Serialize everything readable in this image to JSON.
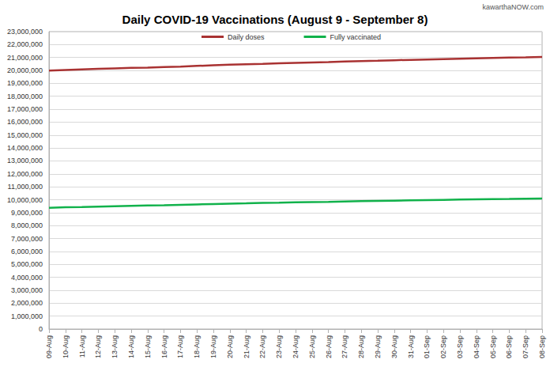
{
  "chart_data": {
    "type": "line",
    "title": "Daily COVID-19 Vaccinations (August 9 - September 8)",
    "annotations": [
      "kawarthaNOW.com"
    ],
    "categories": [
      "09-Aug",
      "10-Aug",
      "11-Aug",
      "12-Aug",
      "13-Aug",
      "14-Aug",
      "15-Aug",
      "16-Aug",
      "17-Aug",
      "18-Aug",
      "19-Aug",
      "20-Aug",
      "21-Aug",
      "22-Aug",
      "23-Aug",
      "24-Aug",
      "25-Aug",
      "26-Aug",
      "27-Aug",
      "28-Aug",
      "29-Aug",
      "30-Aug",
      "31-Aug",
      "01-Sep",
      "02-Sep",
      "03-Sep",
      "04-Sep",
      "05-Sep",
      "06-Sep",
      "07-Sep",
      "08-Sep"
    ],
    "series": [
      {
        "name": "Daily doses",
        "color": "#a93232",
        "values": [
          19980000,
          20030000,
          20080000,
          20120000,
          20160000,
          20200000,
          20220000,
          20260000,
          20300000,
          20350000,
          20400000,
          20440000,
          20480000,
          20510000,
          20550000,
          20590000,
          20620000,
          20650000,
          20690000,
          20720000,
          20750000,
          20790000,
          20820000,
          20850000,
          20880000,
          20910000,
          20940000,
          20970000,
          20990000,
          21010000,
          21040000
        ]
      },
      {
        "name": "Fully vaccinated",
        "color": "#11b24b",
        "values": [
          9380000,
          9420000,
          9440000,
          9470000,
          9500000,
          9530000,
          9560000,
          9580000,
          9610000,
          9640000,
          9670000,
          9700000,
          9720000,
          9750000,
          9770000,
          9800000,
          9820000,
          9840000,
          9870000,
          9890000,
          9910000,
          9930000,
          9950000,
          9970000,
          9990000,
          10010000,
          10030000,
          10050000,
          10060000,
          10080000,
          10100000
        ]
      }
    ],
    "ylim": [
      0,
      23000000
    ],
    "yticks": [
      0,
      {
        "value": 1000000,
        "label": "1,000,000"
      },
      {
        "value": 2000000,
        "label": "2,000,000"
      },
      {
        "value": 3000000,
        "label": "3,000,000"
      },
      {
        "value": 4000000,
        "label": "4,000,000"
      },
      {
        "value": 5000000,
        "label": "5,000,000"
      },
      {
        "value": 6000000,
        "label": "6,000,000"
      },
      {
        "value": 7000000,
        "label": "7,000,000"
      },
      {
        "value": 8000000,
        "label": "8,000,000"
      },
      {
        "value": 9000000,
        "label": "9,000,000"
      },
      {
        "value": 10000000,
        "label": "10,000,000"
      },
      {
        "value": 11000000,
        "label": "11,000,000"
      },
      {
        "value": 12000000,
        "label": "12,000,000"
      },
      {
        "value": 13000000,
        "label": "13,000,000"
      },
      {
        "value": 14000000,
        "label": "14,000,000"
      },
      {
        "value": 15000000,
        "label": "15,000,000"
      },
      {
        "value": 16000000,
        "label": "16,000,000"
      },
      {
        "value": 17000000,
        "label": "17,000,000"
      },
      {
        "value": 18000000,
        "label": "18,000,000"
      },
      {
        "value": 19000000,
        "label": "19,000,000"
      },
      {
        "value": 20000000,
        "label": "20,000,000"
      },
      {
        "value": 21000000,
        "label": "21,000,000"
      },
      {
        "value": 22000000,
        "label": "22,000,000"
      },
      {
        "value": 23000000,
        "label": "23,000,000"
      }
    ],
    "grid": true,
    "legend": "top"
  }
}
